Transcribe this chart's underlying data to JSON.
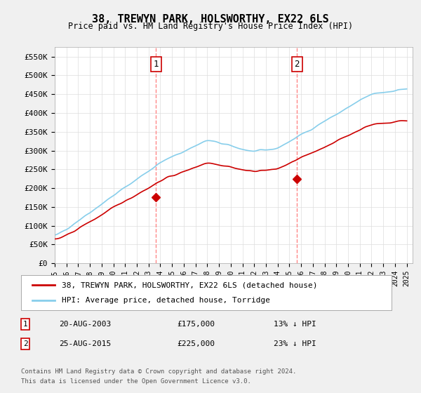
{
  "title": "38, TREWYN PARK, HOLSWORTHY, EX22 6LS",
  "subtitle": "Price paid vs. HM Land Registry's House Price Index (HPI)",
  "ylabel_ticks": [
    "£0",
    "£50K",
    "£100K",
    "£150K",
    "£200K",
    "£250K",
    "£300K",
    "£350K",
    "£400K",
    "£450K",
    "£500K",
    "£550K"
  ],
  "ytick_values": [
    0,
    50000,
    100000,
    150000,
    200000,
    250000,
    300000,
    350000,
    400000,
    450000,
    500000,
    550000
  ],
  "ylim": [
    0,
    575000
  ],
  "xlim_start": 1995.5,
  "xlim_end": 2025.5,
  "hpi_color": "#87CEEB",
  "price_color": "#cc0000",
  "marker_color": "#cc0000",
  "vline_color": "#ff6666",
  "background_color": "#f0f0f0",
  "plot_bg_color": "#ffffff",
  "legend_box_color": "#ffffff",
  "transaction1": {
    "date": "20-AUG-2003",
    "price": 175000,
    "label": "1",
    "year": 2003.63,
    "pct": "13% ↓ HPI"
  },
  "transaction2": {
    "date": "25-AUG-2015",
    "price": 225000,
    "label": "2",
    "year": 2015.65,
    "pct": "23% ↓ HPI"
  },
  "legend_line1": "38, TREWYN PARK, HOLSWORTHY, EX22 6LS (detached house)",
  "legend_line2": "HPI: Average price, detached house, Torridge",
  "footer1": "Contains HM Land Registry data © Crown copyright and database right 2024.",
  "footer2": "This data is licensed under the Open Government Licence v3.0.",
  "xtick_years": [
    1995,
    1996,
    1997,
    1998,
    1999,
    2000,
    2001,
    2002,
    2003,
    2004,
    2005,
    2006,
    2007,
    2008,
    2009,
    2010,
    2011,
    2012,
    2013,
    2014,
    2015,
    2016,
    2017,
    2018,
    2019,
    2020,
    2021,
    2022,
    2023,
    2024,
    2025
  ]
}
